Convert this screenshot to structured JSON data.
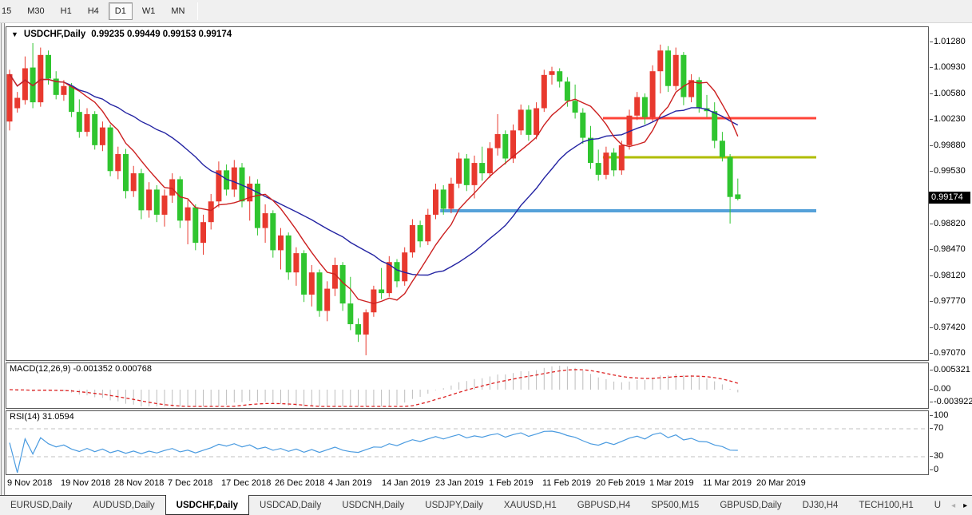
{
  "toolbar": {
    "buttons": [
      {
        "label": "15"
      },
      {
        "label": "M30"
      },
      {
        "label": "H1"
      },
      {
        "label": "H4"
      },
      {
        "label": "D1"
      },
      {
        "label": "W1"
      },
      {
        "label": "MN"
      }
    ],
    "active": "D1"
  },
  "chart_header": {
    "symbol_label": "USDCHF,Daily",
    "ohlc_text": "0.99235 0.99449 0.99153 0.99174"
  },
  "price_axis": {
    "labels": [
      "1.01280",
      "1.00930",
      "1.00580",
      "1.00230",
      "0.99880",
      "0.99530",
      "0.98820",
      "0.98470",
      "0.98120",
      "0.97770",
      "0.97420",
      "0.97070"
    ],
    "current_price": "0.99174"
  },
  "macd_panel": {
    "label": "MACD(12,26,9)",
    "values": "-0.001352 0.000768",
    "axis": [
      "0.005321",
      "0.00",
      "-0.003922"
    ]
  },
  "rsi_panel": {
    "label": "RSI(14)",
    "value": "31.0594",
    "axis": [
      "100",
      "70",
      "30",
      "0"
    ]
  },
  "date_axis": {
    "labels": [
      "9 Nov 2018",
      "19 Nov 2018",
      "28 Nov 2018",
      "7 Dec 2018",
      "17 Dec 2018",
      "26 Dec 2018",
      "4 Jan 2019",
      "14 Jan 2019",
      "23 Jan 2019",
      "1 Feb 2019",
      "11 Feb 2019",
      "20 Feb 2019",
      "1 Mar 2019",
      "11 Mar 2019",
      "20 Mar 2019"
    ]
  },
  "tabs": {
    "items": [
      "EURUSD,Daily",
      "AUDUSD,Daily",
      "USDCHF,Daily",
      "USDCAD,Daily",
      "USDCNH,Daily",
      "USDJPY,Daily",
      "XAUUSD,H1",
      "GBPUSD,H4",
      "SP500,M15",
      "GBPUSD,Daily",
      "DJ30,H4",
      "TECH100,H1",
      "U"
    ],
    "active_index": 2,
    "scroll_left_arrow": "◂",
    "scroll_right_arrow": "▸"
  },
  "colors": {
    "bull_candle": "#e8392e",
    "bear_candle": "#2fc52f",
    "ma_fast": "#cc2020",
    "ma_slow": "#2323a2",
    "level_red": "#ff4438",
    "level_olive": "#b0bd00",
    "level_blue": "#55a1d9",
    "macd_hist": "#bdbdbd",
    "macd_signal": "#dd2222",
    "rsi_line": "#4a9be0",
    "rsi_level_dash": "#c0c0c0",
    "price_tag_bg": "#000000",
    "price_tag_text": "#ffffff"
  },
  "chart_data": {
    "type": "candlestick",
    "symbol": "USDCHF",
    "timeframe": "Daily",
    "title": "USDCHF,Daily",
    "color_convention": "red = bullish (close>open), green = bearish (close<open)",
    "y_axis": {
      "min": 0.9707,
      "max": 1.0128,
      "tick_step": 0.0035
    },
    "current_bar": {
      "open": 0.99235,
      "high": 0.99449,
      "low": 0.99153,
      "close": 0.99174
    },
    "candles": [
      [
        1.0022,
        1.0092,
        1.001,
        1.0086
      ],
      [
        1.004,
        1.0062,
        1.0034,
        1.0054
      ],
      [
        1.0051,
        1.011,
        1.0045,
        1.0094
      ],
      [
        1.0095,
        1.0128,
        1.004,
        1.0048
      ],
      [
        1.0048,
        1.0122,
        1.0042,
        1.0112
      ],
      [
        1.0112,
        1.0118,
        1.0072,
        1.008
      ],
      [
        1.008,
        1.009,
        1.0052,
        1.0058
      ],
      [
        1.0058,
        1.0078,
        1.005,
        1.007
      ],
      [
        1.007,
        1.0074,
        1.0028,
        1.0035
      ],
      [
        1.0035,
        1.0052,
        1.0,
        1.0008
      ],
      [
        1.0008,
        1.004,
        1.0002,
        1.0032
      ],
      [
        1.0032,
        1.0036,
        0.9984,
        0.999
      ],
      [
        0.999,
        1.0022,
        0.9982,
        1.0014
      ],
      [
        1.0014,
        1.0018,
        0.9948,
        0.9955
      ],
      [
        0.9955,
        0.9988,
        0.9944,
        0.9978
      ],
      [
        0.9978,
        0.9985,
        0.9918,
        0.9928
      ],
      [
        0.9928,
        0.9962,
        0.992,
        0.9952
      ],
      [
        0.9952,
        0.9958,
        0.989,
        0.9902
      ],
      [
        0.9902,
        0.994,
        0.9892,
        0.993
      ],
      [
        0.993,
        0.9936,
        0.9886,
        0.9896
      ],
      [
        0.9896,
        0.993,
        0.988,
        0.9922
      ],
      [
        0.9922,
        0.9952,
        0.9912,
        0.9944
      ],
      [
        0.9944,
        0.9948,
        0.9878,
        0.9888
      ],
      [
        0.9888,
        0.9916,
        0.9856,
        0.9906
      ],
      [
        0.9906,
        0.991,
        0.9848,
        0.9858
      ],
      [
        0.9858,
        0.9896,
        0.9842,
        0.9886
      ],
      [
        0.9886,
        0.9924,
        0.9876,
        0.9914
      ],
      [
        0.9914,
        0.9968,
        0.9906,
        0.9956
      ],
      [
        0.9956,
        0.9964,
        0.9922,
        0.993
      ],
      [
        0.993,
        0.997,
        0.992,
        0.996
      ],
      [
        0.996,
        0.9966,
        0.9906,
        0.9914
      ],
      [
        0.9914,
        0.9948,
        0.9888,
        0.9938
      ],
      [
        0.9938,
        0.9944,
        0.9868,
        0.9878
      ],
      [
        0.9878,
        0.991,
        0.9858,
        0.9898
      ],
      [
        0.9898,
        0.9902,
        0.9838,
        0.9848
      ],
      [
        0.9848,
        0.9878,
        0.9822,
        0.9868
      ],
      [
        0.9868,
        0.9872,
        0.9808,
        0.9818
      ],
      [
        0.9818,
        0.9852,
        0.98,
        0.9844
      ],
      [
        0.9844,
        0.9848,
        0.9778,
        0.9788
      ],
      [
        0.9788,
        0.9828,
        0.9772,
        0.9818
      ],
      [
        0.9818,
        0.9822,
        0.9758,
        0.9766
      ],
      [
        0.9766,
        0.9806,
        0.9752,
        0.9796
      ],
      [
        0.9796,
        0.9838,
        0.9786,
        0.9828
      ],
      [
        0.9828,
        0.9832,
        0.9766,
        0.9776
      ],
      [
        0.9776,
        0.9812,
        0.974,
        0.9748
      ],
      [
        0.9748,
        0.9756,
        0.9724,
        0.9734
      ],
      [
        0.9734,
        0.9768,
        0.9706,
        0.9764
      ],
      [
        0.9764,
        0.98,
        0.9758,
        0.9795
      ],
      [
        0.9795,
        0.9824,
        0.9782,
        0.979
      ],
      [
        0.979,
        0.984,
        0.9785,
        0.9832
      ],
      [
        0.9832,
        0.9836,
        0.9798,
        0.9806
      ],
      [
        0.9806,
        0.9852,
        0.98,
        0.9845
      ],
      [
        0.9845,
        0.989,
        0.9838,
        0.9882
      ],
      [
        0.9882,
        0.9888,
        0.9852,
        0.986
      ],
      [
        0.986,
        0.9904,
        0.9855,
        0.9896
      ],
      [
        0.9896,
        0.9938,
        0.989,
        0.993
      ],
      [
        0.993,
        0.9936,
        0.9896,
        0.9904
      ],
      [
        0.9904,
        0.9946,
        0.9898,
        0.9938
      ],
      [
        0.9938,
        0.998,
        0.9932,
        0.9972
      ],
      [
        0.9972,
        0.9978,
        0.9928,
        0.9936
      ],
      [
        0.9936,
        0.9976,
        0.9918,
        0.9966
      ],
      [
        0.9966,
        0.9988,
        0.9942,
        0.9952
      ],
      [
        0.9952,
        0.9994,
        0.9946,
        0.9986
      ],
      [
        0.9986,
        1.0032,
        0.9976,
        1.0005
      ],
      [
        1.0005,
        1.001,
        0.9964,
        0.9972
      ],
      [
        0.9972,
        1.0018,
        0.9966,
        1.001
      ],
      [
        1.001,
        1.0045,
        1.0004,
        1.0038
      ],
      [
        1.0038,
        1.0044,
        0.9996,
        1.0004
      ],
      [
        1.0004,
        1.0048,
        0.9998,
        1.004
      ],
      [
        1.004,
        1.0092,
        1.0035,
        1.0085
      ],
      [
        1.0085,
        1.0096,
        1.0072,
        1.009
      ],
      [
        1.009,
        1.0094,
        1.0068,
        1.0076
      ],
      [
        1.0076,
        1.0082,
        1.0042,
        1.005
      ],
      [
        1.005,
        1.0072,
        1.0026,
        1.0034
      ],
      [
        1.0034,
        1.004,
        0.9992,
        1.0
      ],
      [
        1.0,
        1.0016,
        0.9958,
        0.9966
      ],
      [
        0.9966,
        0.9984,
        0.9942,
        0.995
      ],
      [
        0.995,
        0.9988,
        0.9944,
        0.998
      ],
      [
        0.998,
        0.9986,
        0.9948,
        0.9956
      ],
      [
        0.9956,
        0.9996,
        0.995,
        0.999
      ],
      [
        0.999,
        1.0038,
        0.9984,
        1.003
      ],
      [
        1.003,
        1.0062,
        1.0024,
        1.0055
      ],
      [
        1.0055,
        1.006,
        1.0018,
        1.0028
      ],
      [
        1.0028,
        1.0098,
        1.0022,
        1.009
      ],
      [
        1.009,
        1.0126,
        1.006,
        1.0118
      ],
      [
        1.0118,
        1.0124,
        1.0062,
        1.007
      ],
      [
        1.007,
        1.0122,
        1.0064,
        1.0112
      ],
      [
        1.0112,
        1.0116,
        1.0044,
        1.0055
      ],
      [
        1.0055,
        1.0086,
        1.0048,
        1.0078
      ],
      [
        1.0078,
        1.0082,
        1.0034,
        1.004
      ],
      [
        1.004,
        1.0058,
        1.0028,
        1.0036
      ],
      [
        1.0036,
        1.0048,
        0.9986,
        0.9996
      ],
      [
        0.9996,
        1.0008,
        0.9968,
        0.9974
      ],
      [
        0.9974,
        0.9978,
        0.9884,
        0.992
      ],
      [
        0.99235,
        0.99449,
        0.99153,
        0.99174
      ]
    ],
    "overlays": {
      "ma_fast": {
        "type": "sma",
        "period": 8
      },
      "ma_slow": {
        "type": "sma",
        "period": 21
      }
    },
    "levels": [
      {
        "price": 1.00265,
        "color_key": "level_red",
        "from_candle": 77,
        "width": 3
      },
      {
        "price": 0.99737,
        "color_key": "level_olive",
        "from_candle": 77,
        "width": 3
      },
      {
        "price": 0.99013,
        "color_key": "level_blue",
        "from_candle": 56,
        "width": 4
      }
    ],
    "indicators": [
      {
        "name": "MACD",
        "params": [
          12,
          26,
          9
        ],
        "current_macd": -0.001352,
        "current_signal": 0.000768,
        "axis_max": 0.005321,
        "axis_min": -0.003922
      },
      {
        "name": "RSI",
        "params": [
          14
        ],
        "current": 31.0594,
        "levels": [
          70,
          30
        ],
        "axis": [
          100,
          70,
          30,
          0
        ]
      }
    ]
  }
}
